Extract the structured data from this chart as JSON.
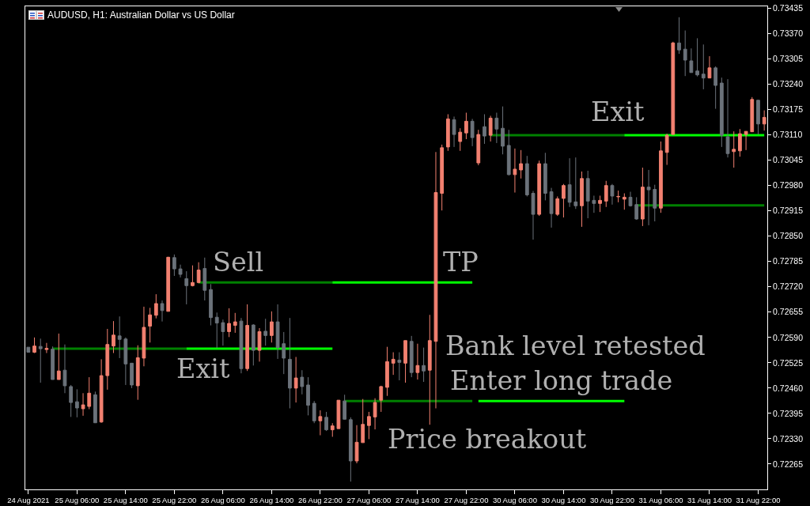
{
  "chart_data": {
    "type": "candlestick",
    "title": "AUDUSD, H1: Australian Dollar vs US Dollar",
    "categories": [
      "24 Aug 2021",
      null,
      null,
      null,
      null,
      null,
      null,
      null,
      "25 Aug 06:00",
      null,
      null,
      null,
      null,
      null,
      null,
      null,
      "25 Aug 14:00",
      null,
      null,
      null,
      null,
      null,
      null,
      null,
      "25 Aug 22:00",
      null,
      null,
      null,
      null,
      null,
      null,
      null,
      "26 Aug 06:00",
      null,
      null,
      null,
      null,
      null,
      null,
      null,
      "26 Aug 14:00",
      null,
      null,
      null,
      null,
      null,
      null,
      null,
      "26 Aug 22:00",
      null,
      null,
      null,
      null,
      null,
      null,
      null,
      "27 Aug 06:00",
      null,
      null,
      null,
      null,
      null,
      null,
      null,
      "27 Aug 14:00",
      null,
      null,
      null,
      null,
      null,
      null,
      null,
      "27 Aug 22:00",
      null,
      null,
      null,
      null,
      null,
      null,
      null,
      "30 Aug 06:00",
      null,
      null,
      null,
      null,
      null,
      null,
      null,
      "30 Aug 14:00",
      null,
      null,
      null,
      null,
      null,
      null,
      null,
      "30 Aug 22:00",
      null,
      null,
      null,
      null,
      null,
      null,
      null,
      "31 Aug 06:00",
      null,
      null,
      null,
      null,
      null,
      null,
      null,
      "31 Aug 14:00",
      null,
      null,
      null,
      null,
      null,
      null,
      null,
      "31 Aug 22:00",
      null
    ],
    "ylim": [
      0.722,
      0.7344
    ],
    "yticks": [
      0.72265,
      {
        "value": 0.7233,
        "label": "0.72330"
      },
      0.72395,
      {
        "value": 0.7246,
        "label": "0.72460"
      },
      0.72525,
      {
        "value": 0.7259,
        "label": "0.72590"
      },
      0.72655,
      {
        "value": 0.7272,
        "label": "0.72720"
      },
      0.72785,
      {
        "value": 0.7285,
        "label": "0.72850"
      },
      0.72915,
      {
        "value": 0.7298,
        "label": "0.72980"
      },
      0.73045,
      {
        "value": 0.7311,
        "label": "0.73110"
      },
      0.73175,
      {
        "value": 0.7324,
        "label": "0.73240"
      },
      0.73305,
      {
        "value": 0.7337,
        "label": "0.73370"
      },
      0.73435
    ],
    "ohlc": [
      [
        0.72565,
        0.72565,
        0.72552,
        0.72552
      ],
      [
        0.72552,
        0.7259,
        0.7255,
        0.72568
      ],
      [
        0.72567,
        0.72587,
        0.72474,
        0.72561
      ],
      [
        0.72559,
        0.72576,
        0.7255,
        0.72562
      ],
      [
        0.7256,
        0.72567,
        0.72482,
        0.72482
      ],
      [
        0.72482,
        0.726,
        0.72482,
        0.72504
      ],
      [
        0.72506,
        0.72572,
        0.72447,
        0.72466
      ],
      [
        0.72464,
        0.72468,
        0.72386,
        0.72423
      ],
      [
        0.72425,
        0.72457,
        0.72385,
        0.72409
      ],
      [
        0.72407,
        0.72447,
        0.72389,
        0.72417
      ],
      [
        0.72413,
        0.72488,
        0.72406,
        0.72447
      ],
      [
        0.72443,
        0.72451,
        0.72371,
        0.72371
      ],
      [
        0.72373,
        0.72534,
        0.72371,
        0.72492
      ],
      [
        0.72492,
        0.72612,
        0.72456,
        0.72572
      ],
      [
        0.72568,
        0.72632,
        0.7255,
        0.72596
      ],
      [
        0.72594,
        0.72644,
        0.72537,
        0.72585
      ],
      [
        0.72586,
        0.7259,
        0.72468,
        0.72522
      ],
      [
        0.72524,
        0.72524,
        0.7246,
        0.72468
      ],
      [
        0.72466,
        0.7257,
        0.7243,
        0.72538
      ],
      [
        0.72537,
        0.72669,
        0.72516,
        0.72616
      ],
      [
        0.72619,
        0.72666,
        0.72577,
        0.72648
      ],
      [
        0.72647,
        0.72701,
        0.72639,
        0.72677
      ],
      [
        0.72677,
        0.72685,
        0.72631,
        0.72659
      ],
      [
        0.72657,
        0.72797,
        0.72657,
        0.72796
      ],
      [
        0.72795,
        0.72803,
        0.72748,
        0.72766
      ],
      [
        0.72766,
        0.72777,
        0.72744,
        0.72752
      ],
      [
        0.72741,
        0.7276,
        0.72675,
        0.72723
      ],
      [
        0.72723,
        0.72775,
        0.72721,
        0.72731
      ],
      [
        0.72731,
        0.72783,
        0.72729,
        0.72763
      ],
      [
        0.72767,
        0.72795,
        0.72685,
        0.72711
      ],
      [
        0.72713,
        0.72727,
        0.72621,
        0.72641
      ],
      [
        0.72642,
        0.72654,
        0.72563,
        0.72627
      ],
      [
        0.72628,
        0.72636,
        0.72569,
        0.72605
      ],
      [
        0.72605,
        0.72665,
        0.72591,
        0.72626
      ],
      [
        0.72621,
        0.72653,
        0.72602,
        0.7263
      ],
      [
        0.72632,
        0.7264,
        0.72498,
        0.7251
      ],
      [
        0.7251,
        0.72675,
        0.72504,
        0.72621
      ],
      [
        0.72622,
        0.72624,
        0.72518,
        0.72557
      ],
      [
        0.72557,
        0.72614,
        0.72528,
        0.72605
      ],
      [
        0.72606,
        0.72638,
        0.72569,
        0.72595
      ],
      [
        0.72595,
        0.72657,
        0.72577,
        0.7263
      ],
      [
        0.7263,
        0.72675,
        0.72535,
        0.72564
      ],
      [
        0.72574,
        0.72604,
        0.72496,
        0.72537
      ],
      [
        0.72534,
        0.7264,
        0.72408,
        0.7246
      ],
      [
        0.7246,
        0.7254,
        0.72423,
        0.72486
      ],
      [
        0.72488,
        0.72506,
        0.72444,
        0.72464
      ],
      [
        0.72468,
        0.72488,
        0.7239,
        0.72416
      ],
      [
        0.72421,
        0.72427,
        0.7237,
        0.72376
      ],
      [
        0.72376,
        0.72403,
        0.72339,
        0.72387
      ],
      [
        0.72385,
        0.72399,
        0.7235,
        0.72353
      ],
      [
        0.72353,
        0.7237,
        0.72335,
        0.72363
      ],
      [
        0.72356,
        0.72429,
        0.72356,
        0.72429
      ],
      [
        0.72427,
        0.72443,
        0.7238,
        0.7238
      ],
      [
        0.72379,
        0.72385,
        0.7222,
        0.72273
      ],
      [
        0.72273,
        0.72365,
        0.72267,
        0.72321
      ],
      [
        0.7232,
        0.72432,
        0.7232,
        0.72367
      ],
      [
        0.72364,
        0.72399,
        0.72329,
        0.72387
      ],
      [
        0.72386,
        0.72434,
        0.72354,
        0.72423
      ],
      [
        0.72429,
        0.72466,
        0.72399,
        0.72464
      ],
      [
        0.72462,
        0.72566,
        0.7244,
        0.72528
      ],
      [
        0.72524,
        0.72552,
        0.72494,
        0.72534
      ],
      [
        0.72532,
        0.72552,
        0.7248,
        0.72526
      ],
      [
        0.72524,
        0.72582,
        0.72474,
        0.72582
      ],
      [
        0.7258,
        0.72594,
        0.72488,
        0.725
      ],
      [
        0.725,
        0.72574,
        0.72482,
        0.72518
      ],
      [
        0.72518,
        0.72564,
        0.72476,
        0.72504
      ],
      [
        0.72506,
        0.72648,
        0.72366,
        0.72582
      ],
      [
        0.7258,
        0.73066,
        0.72408,
        0.72962
      ],
      [
        0.7296,
        0.73085,
        0.72916,
        0.73077
      ],
      [
        0.73079,
        0.73163,
        0.73069,
        0.73151
      ],
      [
        0.73149,
        0.73157,
        0.73079,
        0.73111
      ],
      [
        0.73093,
        0.73127,
        0.73069,
        0.73117
      ],
      [
        0.73115,
        0.73167,
        0.73099,
        0.73145
      ],
      [
        0.73145,
        0.73151,
        0.73081,
        0.73103
      ],
      [
        0.73038,
        0.73123,
        0.73032,
        0.73111
      ],
      [
        0.73131,
        0.73163,
        0.73087,
        0.73107
      ],
      [
        0.73109,
        0.73159,
        0.73093,
        0.73153
      ],
      [
        0.73153,
        0.73167,
        0.73089,
        0.73125
      ],
      [
        0.73127,
        0.73183,
        0.7306,
        0.73081
      ],
      [
        0.73083,
        0.73123,
        0.73006,
        0.73008
      ],
      [
        0.73008,
        0.73075,
        0.72962,
        0.73022
      ],
      [
        0.7302,
        0.73071,
        0.72998,
        0.73036
      ],
      [
        0.73036,
        0.73056,
        0.72952,
        0.72956
      ],
      [
        0.7296,
        0.72966,
        0.72841,
        0.72906
      ],
      [
        0.72906,
        0.73044,
        0.72902,
        0.73036
      ],
      [
        0.73036,
        0.73064,
        0.72942,
        0.7296
      ],
      [
        0.72964,
        0.72974,
        0.72872,
        0.72908
      ],
      [
        0.72906,
        0.72952,
        0.72902,
        0.72946
      ],
      [
        0.72947,
        0.72984,
        0.72898,
        0.7298
      ],
      [
        0.72982,
        0.7305,
        0.72925,
        0.72937
      ],
      [
        0.72938,
        0.73052,
        0.7292,
        0.72928
      ],
      [
        0.72928,
        0.73016,
        0.72874,
        0.72998
      ],
      [
        0.72998,
        0.73018,
        0.72896,
        0.7294
      ],
      [
        0.72942,
        0.72954,
        0.7291,
        0.72934
      ],
      [
        0.72934,
        0.72954,
        0.72912,
        0.72942
      ],
      [
        0.7294,
        0.72992,
        0.72925,
        0.7298
      ],
      [
        0.7298,
        0.72984,
        0.72931,
        0.72953
      ],
      [
        0.72951,
        0.72967,
        0.72937,
        0.72952
      ],
      [
        0.72945,
        0.7296,
        0.72918,
        0.7295
      ],
      [
        0.7295,
        0.72964,
        0.72926,
        0.72928
      ],
      [
        0.72931,
        0.7295,
        0.72892,
        0.72894
      ],
      [
        0.72894,
        0.73026,
        0.72876,
        0.72976
      ],
      [
        0.72976,
        0.7302,
        0.72878,
        0.72969
      ],
      [
        0.7297,
        0.72982,
        0.72888,
        0.72922
      ],
      [
        0.72922,
        0.73093,
        0.7291,
        0.73069
      ],
      [
        0.73065,
        0.73113,
        0.73033,
        0.73109
      ],
      [
        0.73111,
        0.73349,
        0.73111,
        0.73346
      ],
      [
        0.73346,
        0.73412,
        0.73318,
        0.73328
      ],
      [
        0.7333,
        0.73378,
        0.73261,
        0.73302
      ],
      [
        0.733,
        0.73332,
        0.7327,
        0.7327
      ],
      [
        0.73274,
        0.73358,
        0.7326,
        0.73264
      ],
      [
        0.73266,
        0.73342,
        0.73227,
        0.73256
      ],
      [
        0.73256,
        0.73312,
        0.73256,
        0.73282
      ],
      [
        0.73282,
        0.73286,
        0.73177,
        0.73237
      ],
      [
        0.73243,
        0.73257,
        0.73079,
        0.73109
      ],
      [
        0.73105,
        0.73253,
        0.73052,
        0.73062
      ],
      [
        0.73067,
        0.73119,
        0.73026,
        0.73073
      ],
      [
        0.73069,
        0.73125,
        0.73054,
        0.73113
      ],
      [
        0.73111,
        0.73119,
        0.73071,
        0.73119
      ],
      [
        0.73118,
        0.73207,
        0.73118,
        0.73201
      ],
      [
        0.73199,
        0.73199,
        0.73111,
        0.73138
      ],
      [
        0.73138,
        0.73173,
        0.73121,
        0.73155
      ]
    ],
    "colors": [
      "#6b727a",
      "#f28070",
      "#6b727a",
      "#f28070",
      "#6b727a",
      "#f28070",
      "#6b727a",
      "#6b727a",
      "#6b727a",
      "#f28070",
      "#f28070",
      "#6b727a",
      "#f28070",
      "#f28070",
      "#f28070",
      "#6b727a",
      "#6b727a",
      "#6b727a",
      "#f28070",
      "#f28070",
      "#f28070",
      "#f28070",
      "#6b727a",
      "#f28070",
      "#6b727a",
      "#6b727a",
      "#6b727a",
      "#f28070",
      "#f28070",
      "#6b727a",
      "#6b727a",
      "#6b727a",
      "#6b727a",
      "#f28070",
      "#f28070",
      "#6b727a",
      "#f28070",
      "#6b727a",
      "#f28070",
      "#6b727a",
      "#f28070",
      "#6b727a",
      "#6b727a",
      "#6b727a",
      "#f28070",
      "#6b727a",
      "#6b727a",
      "#6b727a",
      "#f28070",
      "#6b727a",
      "#f28070",
      "#f28070",
      "#6b727a",
      "#6b727a",
      "#f28070",
      "#f28070",
      "#f28070",
      "#f28070",
      "#f28070",
      "#f28070",
      "#f28070",
      "#6b727a",
      "#f28070",
      "#6b727a",
      "#f28070",
      "#6b727a",
      "#f28070",
      "#f28070",
      "#f28070",
      "#f28070",
      "#6b727a",
      "#f28070",
      "#f28070",
      "#6b727a",
      "#f28070",
      "#6b727a",
      "#f28070",
      "#6b727a",
      "#6b727a",
      "#6b727a",
      "#f28070",
      "#f28070",
      "#6b727a",
      "#6b727a",
      "#f28070",
      "#6b727a",
      "#6b727a",
      "#f28070",
      "#f28070",
      "#6b727a",
      "#6b727a",
      "#f28070",
      "#6b727a",
      "#6b727a",
      "#f28070",
      "#f28070",
      "#6b727a",
      "#f28070",
      "#f28070",
      "#6b727a",
      "#6b727a",
      "#f28070",
      "#6b727a",
      "#6b727a",
      "#f28070",
      "#f28070",
      "#f28070",
      "#6b727a",
      "#6b727a",
      "#6b727a",
      "#6b727a",
      "#6b727a",
      "#f28070",
      "#6b727a",
      "#6b727a",
      "#6b727a",
      "#f28070",
      "#f28070",
      "#f28070",
      "#f28070",
      "#6b727a",
      "#f28070"
    ],
    "series": [
      {
        "type": "line",
        "color": "#008000",
        "values": [
          null,
          null,
          null,
          null,
          0.72561,
          0.72561,
          0.72561,
          0.72561,
          0.72561,
          0.72561,
          0.72561,
          0.72561,
          0.72561,
          0.72561,
          0.72561,
          0.72561,
          0.72561,
          0.72561,
          0.72561,
          0.72561,
          0.72561,
          0.72561,
          0.72561,
          0.72561,
          0.72561,
          0.72561,
          0.72561,
          null,
          0.72731,
          0.72731,
          0.72731,
          0.72731,
          0.72731,
          0.72731,
          0.72731,
          0.72731,
          0.72731,
          0.72731,
          0.72731,
          0.72731,
          0.72731,
          0.72731,
          0.72731,
          0.72731,
          0.72731,
          0.72731,
          0.72731,
          0.72731,
          0.72731,
          0.72731,
          0.72731,
          null,
          0.72427,
          0.72427,
          0.72427,
          0.72427,
          0.72427,
          0.72427,
          0.72427,
          0.72427,
          0.72427,
          0.72427,
          0.72427,
          0.72427,
          0.72427,
          0.72427,
          0.72427,
          0.72427,
          0.72427,
          0.72427,
          0.72427,
          0.72427,
          0.72427,
          0.72427,
          null,
          null,
          0.73109,
          0.73109,
          0.73109,
          0.73109,
          0.73109,
          0.73109,
          0.73109,
          0.73109,
          0.73109,
          0.73109,
          0.73109,
          0.73109,
          0.73109,
          0.73109,
          0.73109,
          0.73109,
          0.73109,
          0.73109,
          0.73109,
          0.73109,
          0.73109,
          0.73109,
          0.73109,
          null,
          0.72929,
          0.72929,
          0.72929,
          0.72929,
          0.72929,
          0.72929,
          0.72929,
          0.72929,
          0.72929,
          0.72929,
          0.72929,
          0.72929,
          0.72929,
          0.72929,
          0.72929,
          0.72929,
          0.72929,
          0.72929,
          0.72929,
          0.72929,
          0.72929,
          0.72929
        ]
      },
      {
        "type": "line",
        "color": "#00ff00",
        "values": [
          null,
          null,
          null,
          null,
          null,
          null,
          null,
          null,
          null,
          null,
          null,
          null,
          null,
          null,
          null,
          null,
          null,
          null,
          null,
          null,
          null,
          null,
          null,
          null,
          null,
          null,
          0.72561,
          0.72561,
          0.72561,
          0.72561,
          0.72561,
          0.72561,
          0.72561,
          0.72561,
          0.72561,
          0.72561,
          0.72561,
          0.72561,
          0.72561,
          0.72561,
          0.72561,
          0.72561,
          0.72561,
          0.72561,
          0.72561,
          0.72561,
          0.72561,
          0.72561,
          0.72561,
          0.72561,
          0.72561,
          null,
          null,
          null,
          null,
          null,
          null,
          null,
          null,
          null,
          null,
          null,
          null,
          null,
          null,
          null,
          null,
          null,
          null,
          null,
          null,
          null,
          null,
          null,
          0.72427,
          0.72427,
          0.72427,
          0.72427,
          0.72427,
          0.72427,
          0.72427,
          0.72427,
          0.72427,
          0.72427,
          0.72427,
          0.72427,
          0.72427,
          0.72427,
          0.72427,
          0.72427,
          0.72427,
          0.72427,
          0.72427,
          0.72427,
          0.72427,
          0.72427,
          0.72427,
          0.72427,
          0.72427,
          null,
          null,
          null,
          null,
          null,
          null,
          null,
          null,
          null,
          null,
          null,
          null,
          null,
          null,
          null,
          null,
          null,
          null,
          null,
          null,
          null,
          null,
          null
        ]
      },
      {
        "type": "line",
        "color": "#00ff00",
        "values": [
          null,
          null,
          null,
          null,
          null,
          null,
          null,
          null,
          null,
          null,
          null,
          null,
          null,
          null,
          null,
          null,
          null,
          null,
          null,
          null,
          null,
          null,
          null,
          null,
          null,
          null,
          null,
          null,
          null,
          null,
          null,
          null,
          null,
          null,
          null,
          null,
          null,
          null,
          null,
          null,
          null,
          null,
          null,
          null,
          null,
          null,
          null,
          null,
          null,
          null,
          0.72731,
          0.72731,
          0.72731,
          0.72731,
          0.72731,
          0.72731,
          0.72731,
          0.72731,
          0.72731,
          0.72731,
          0.72731,
          0.72731,
          0.72731,
          0.72731,
          0.72731,
          0.72731,
          0.72731,
          0.72731,
          0.72731,
          0.72731,
          0.72731,
          0.72731,
          0.72731,
          0.72731,
          null,
          null,
          null,
          null,
          null,
          null,
          null,
          null,
          null,
          null,
          null,
          null,
          null,
          null,
          null,
          null,
          null,
          null,
          null,
          null,
          null,
          null,
          null,
          null,
          0.73109,
          0.73109,
          0.73109,
          0.73109,
          0.73109,
          0.73109,
          0.73109,
          0.73109,
          0.73109,
          0.73109,
          0.73109,
          0.73109,
          0.73109,
          0.73109,
          0.73109,
          0.73109,
          0.73109,
          0.73109,
          0.73109,
          0.73109,
          0.73109,
          0.73109,
          0.73109,
          0.73109
        ]
      }
    ],
    "annotations": [
      "Sell",
      "TP",
      "Exit",
      "Exit",
      "Bank level retested",
      "Enter long trade",
      "Price breakout"
    ]
  }
}
